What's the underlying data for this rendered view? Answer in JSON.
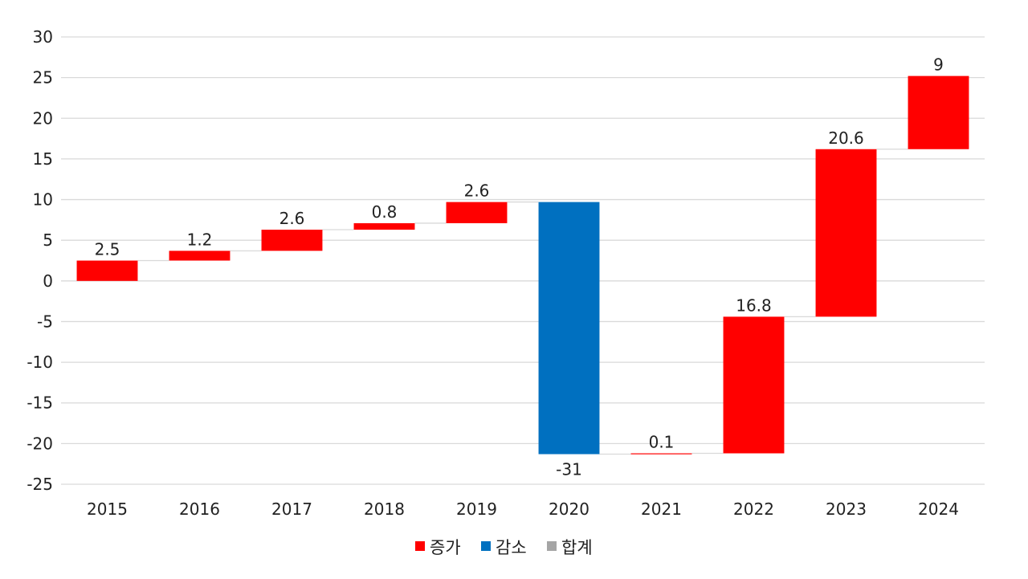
{
  "chart_data": {
    "type": "waterfall",
    "title": "",
    "xlabel": "",
    "ylabel": "",
    "categories": [
      "2015",
      "2016",
      "2017",
      "2018",
      "2019",
      "2020",
      "2021",
      "2022",
      "2023",
      "2024"
    ],
    "labels": [
      "2.5",
      "1.2",
      "2.6",
      "0.8",
      "2.6",
      "-31",
      "0.1",
      "16.8",
      "20.6",
      "9"
    ],
    "bars": [
      {
        "start": 0,
        "end": 2.5,
        "kind": "increase"
      },
      {
        "start": 2.5,
        "end": 3.7,
        "kind": "increase"
      },
      {
        "start": 3.7,
        "end": 6.3,
        "kind": "increase"
      },
      {
        "start": 6.3,
        "end": 7.1,
        "kind": "increase"
      },
      {
        "start": 7.1,
        "end": 9.7,
        "kind": "increase"
      },
      {
        "start": 9.7,
        "end": -21.3,
        "kind": "decrease"
      },
      {
        "start": -21.3,
        "end": -21.2,
        "kind": "increase"
      },
      {
        "start": -21.2,
        "end": -4.4,
        "kind": "increase"
      },
      {
        "start": -4.4,
        "end": 16.2,
        "kind": "increase"
      },
      {
        "start": 16.2,
        "end": 25.2,
        "kind": "increase"
      }
    ],
    "ylim": [
      -25,
      30
    ],
    "ytick_step": 5,
    "yticks": [
      "30",
      "25",
      "20",
      "15",
      "10",
      "5",
      "0",
      "-5",
      "-10",
      "-15",
      "-20",
      "-25"
    ],
    "grid": true,
    "legend_position": "bottom",
    "legend": [
      {
        "key": "increase",
        "label": "증가",
        "color": "#FF0000"
      },
      {
        "key": "decrease",
        "label": "감소",
        "color": "#0070C0"
      },
      {
        "key": "total",
        "label": "합계",
        "color": "#A5A5A5"
      }
    ],
    "colors": {
      "increase": "#FF0000",
      "decrease": "#0070C0",
      "total": "#A5A5A5",
      "grid": "#D9D9D9",
      "connector": "#D9D9D9"
    }
  }
}
